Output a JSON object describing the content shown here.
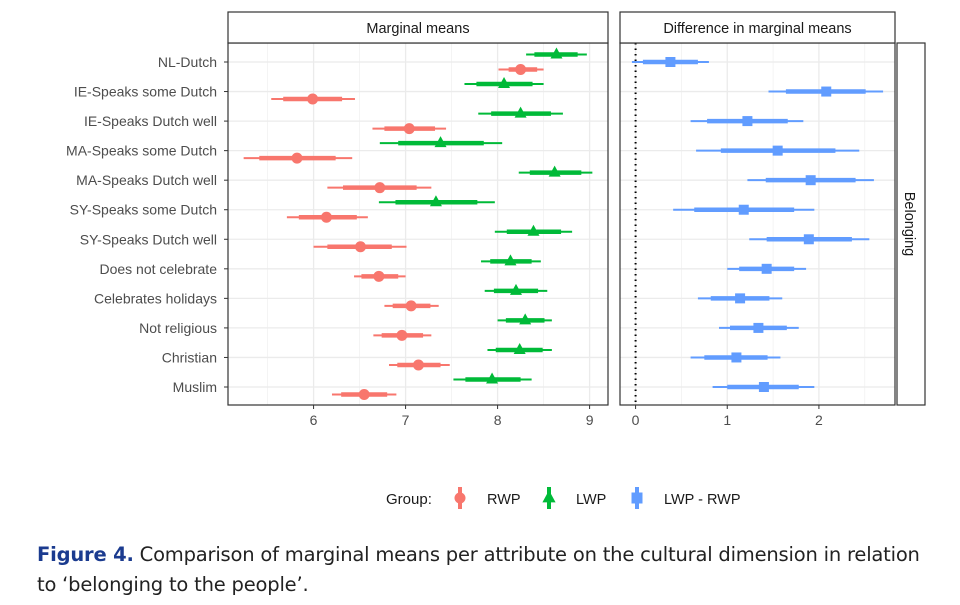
{
  "chart_data": {
    "type": "dot-interval",
    "panels": [
      {
        "strip": "Marginal means",
        "xlim": [
          5.07,
          9.2
        ],
        "ticks": [
          6,
          7,
          8,
          9
        ]
      },
      {
        "strip": "Difference in marginal means",
        "xlim": [
          -0.17,
          2.83
        ],
        "ticks": [
          0,
          1,
          2
        ],
        "reference_line": 0
      }
    ],
    "row_strip": "Belonging",
    "categories": [
      "NL-Dutch",
      "IE-Speaks some Dutch",
      "IE-Speaks Dutch well",
      "MA-Speaks some Dutch",
      "MA-Speaks Dutch well",
      "SY-Speaks some Dutch",
      "SY-Speaks Dutch well",
      "Does not celebrate",
      "Celebrates holidays",
      "Not religious",
      "Christian",
      "Muslim"
    ],
    "series": [
      {
        "name": "RWP",
        "panel": 0,
        "color": "#F8766D",
        "shape": "circle",
        "values": [
          8.25,
          5.99,
          7.04,
          5.82,
          6.72,
          6.14,
          6.51,
          6.71,
          7.06,
          6.96,
          7.14,
          6.55
        ],
        "ci_inner": [
          [
            8.12,
            8.43
          ],
          [
            5.67,
            6.31
          ],
          [
            6.77,
            7.32
          ],
          [
            5.41,
            6.24
          ],
          [
            6.32,
            7.12
          ],
          [
            5.84,
            6.47
          ],
          [
            6.15,
            6.85
          ],
          [
            6.52,
            6.92
          ],
          [
            6.86,
            7.27
          ],
          [
            6.74,
            7.19
          ],
          [
            6.91,
            7.38
          ],
          [
            6.3,
            6.8
          ]
        ],
        "ci_outer": [
          [
            8.01,
            8.5
          ],
          [
            5.54,
            6.45
          ],
          [
            6.64,
            7.44
          ],
          [
            5.24,
            6.42
          ],
          [
            6.15,
            7.28
          ],
          [
            5.71,
            6.59
          ],
          [
            6.0,
            7.01
          ],
          [
            6.44,
            7.0
          ],
          [
            6.77,
            7.36
          ],
          [
            6.65,
            7.28
          ],
          [
            6.82,
            7.48
          ],
          [
            6.2,
            6.9
          ]
        ]
      },
      {
        "name": "LWP",
        "panel": 0,
        "color": "#00BA38",
        "shape": "triangle",
        "values": [
          8.64,
          8.07,
          8.25,
          7.38,
          8.62,
          7.33,
          8.39,
          8.14,
          8.2,
          8.3,
          8.24,
          7.94
        ],
        "ci_inner": [
          [
            8.4,
            8.87
          ],
          [
            7.77,
            8.38
          ],
          [
            7.93,
            8.58
          ],
          [
            6.92,
            7.85
          ],
          [
            8.35,
            8.91
          ],
          [
            6.89,
            7.78
          ],
          [
            8.1,
            8.69
          ],
          [
            7.92,
            8.37
          ],
          [
            7.96,
            8.44
          ],
          [
            8.09,
            8.51
          ],
          [
            7.98,
            8.49
          ],
          [
            7.65,
            8.25
          ]
        ],
        "ci_outer": [
          [
            8.31,
            8.97
          ],
          [
            7.64,
            8.5
          ],
          [
            7.79,
            8.71
          ],
          [
            6.72,
            8.05
          ],
          [
            8.23,
            9.03
          ],
          [
            6.71,
            7.97
          ],
          [
            7.97,
            8.81
          ],
          [
            7.82,
            8.47
          ],
          [
            7.86,
            8.54
          ],
          [
            8.0,
            8.59
          ],
          [
            7.89,
            8.59
          ],
          [
            7.52,
            8.37
          ]
        ]
      },
      {
        "name": "LWP - RWP",
        "panel": 1,
        "color": "#619CFF",
        "shape": "square",
        "values": [
          0.38,
          2.08,
          1.22,
          1.55,
          1.91,
          1.18,
          1.89,
          1.43,
          1.14,
          1.34,
          1.1,
          1.4
        ],
        "ci_inner": [
          [
            0.08,
            0.68
          ],
          [
            1.64,
            2.51
          ],
          [
            0.78,
            1.66
          ],
          [
            0.93,
            2.18
          ],
          [
            1.42,
            2.4
          ],
          [
            0.64,
            1.73
          ],
          [
            1.43,
            2.36
          ],
          [
            1.13,
            1.73
          ],
          [
            0.82,
            1.46
          ],
          [
            1.03,
            1.65
          ],
          [
            0.75,
            1.44
          ],
          [
            1.0,
            1.78
          ]
        ],
        "ci_outer": [
          [
            -0.04,
            0.8
          ],
          [
            1.45,
            2.7
          ],
          [
            0.6,
            1.83
          ],
          [
            0.66,
            2.44
          ],
          [
            1.22,
            2.6
          ],
          [
            0.41,
            1.95
          ],
          [
            1.24,
            2.55
          ],
          [
            1.0,
            1.86
          ],
          [
            0.68,
            1.6
          ],
          [
            0.91,
            1.78
          ],
          [
            0.6,
            1.58
          ],
          [
            0.84,
            1.95
          ]
        ]
      }
    ],
    "legend": {
      "title": "Group:",
      "position": "bottom"
    }
  },
  "caption": {
    "label": "Figure 4.",
    "text": " Comparison of marginal means per attribute on the cultural dimension in relation to ‘belonging to the people’."
  }
}
